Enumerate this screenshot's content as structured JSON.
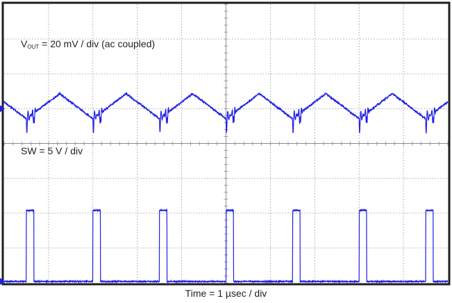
{
  "chart_data": {
    "type": "line",
    "xlabel": "Time = 1 µsec / div",
    "grid": true,
    "x_divisions": 10,
    "y_divisions": 8,
    "x_unit": "µs",
    "x_range": [
      0,
      10
    ],
    "switching_period_us": 1.5,
    "channels": [
      {
        "label_main": "V",
        "label_sub": "OUT",
        "label_rest": " = 20 mV / div (ac coupled)",
        "scale": "20 mV / div",
        "coupling": "ac",
        "unit": "mV",
        "color": "#1f1fe6",
        "baseline_div": 5.0,
        "edge_times_us": [
          0.5,
          2.0,
          3.5,
          5.0,
          6.5,
          8.0,
          9.5
        ],
        "ripple_peak_to_peak_mV": 16,
        "spike_mV": 12
      },
      {
        "label": "SW = 5 V / div",
        "scale": "5 V / div",
        "unit": "V",
        "color": "#1f1fe6",
        "baseline_div": 0.0,
        "pulse_start_us": [
          0.5,
          2.0,
          3.5,
          5.0,
          6.5,
          8.0,
          9.5
        ],
        "pulse_width_us": 0.17,
        "high_V": 11,
        "low_V": 0
      }
    ]
  }
}
